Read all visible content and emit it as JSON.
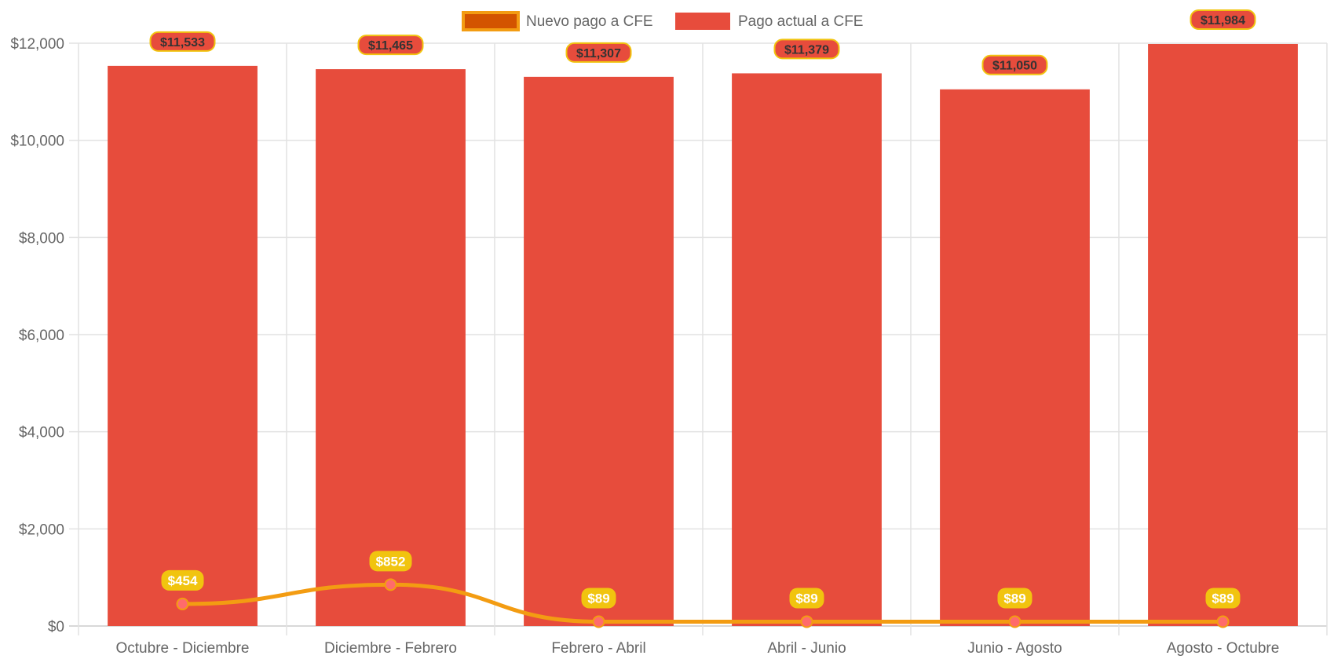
{
  "chart_data": {
    "type": "bar",
    "categories": [
      "Octubre - Diciembre",
      "Diciembre - Febrero",
      "Febrero - Abril",
      "Abril - Junio",
      "Junio - Agosto",
      "Agosto - Octubre"
    ],
    "series": [
      {
        "name": "Nuevo pago a CFE",
        "type": "line",
        "values": [
          454,
          852,
          89,
          89,
          89,
          89
        ],
        "labels": [
          "$454",
          "$852",
          "$89",
          "$89",
          "$89",
          "$89"
        ],
        "color": "#f39c12",
        "point_color": "#ff6b6b",
        "label_bg": "#f1c40f"
      },
      {
        "name": "Pago actual a CFE",
        "type": "bar",
        "values": [
          11533,
          11465,
          11307,
          11379,
          11050,
          11984
        ],
        "labels": [
          "$11,533",
          "$11,465",
          "$11,307",
          "$11,379",
          "$11,050",
          "$11,984"
        ],
        "color": "#e74c3c",
        "label_border": "#f1c40f"
      }
    ],
    "legend": {
      "position": "top",
      "entries": [
        "Nuevo pago a CFE",
        "Pago actual a CFE"
      ]
    },
    "y_ticks": [
      "$0",
      "$2,000",
      "$4,000",
      "$6,000",
      "$8,000",
      "$10,000",
      "$12,000"
    ],
    "ylim": [
      0,
      12000
    ],
    "grid": true
  }
}
